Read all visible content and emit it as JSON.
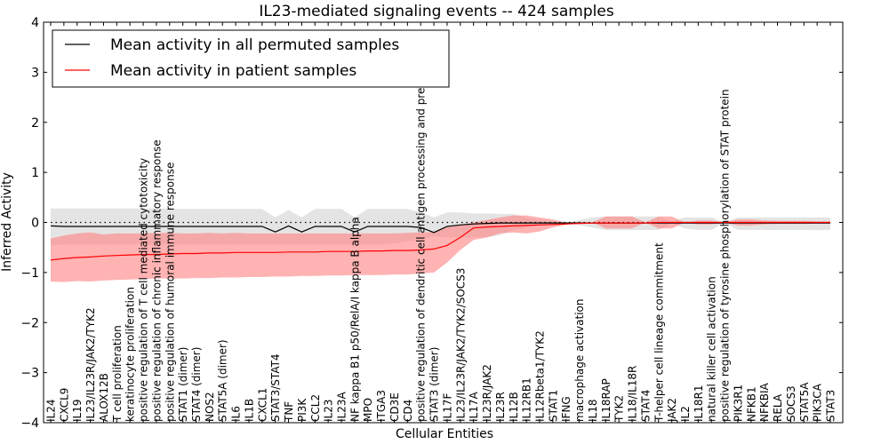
{
  "chart_data": {
    "type": "line",
    "title": "IL23-mediated signaling events -- 424 samples",
    "xlabel": "Cellular Entities",
    "ylabel": "Inferred Activity",
    "ylim": [
      -4,
      4
    ],
    "yticks": [
      -4,
      -3,
      -2,
      -1,
      0,
      1,
      2,
      3,
      4
    ],
    "ytick_labels": [
      "−4",
      "−3",
      "−2",
      "−1",
      "0",
      "1",
      "2",
      "3",
      "4"
    ],
    "grid": false,
    "legend_position": "top-left",
    "reference_line": {
      "y": 0,
      "style": "dotted",
      "color": "#000000"
    },
    "categories": [
      "IL24",
      "CXCL9",
      "IL19",
      "IL23/IL23R/JAK2/TYK2",
      "ALOX12B",
      "T cell proliferation",
      "keratinocyte proliferation",
      "positive regulation of T cell mediated cytotoxicity",
      "positive regulation of chronic inflammatory response",
      "positive regulation of humoral immune response",
      "STAT1 (dimer)",
      "STAT4 (dimer)",
      "NOS2",
      "STAT5A (dimer)",
      "IL6",
      "IL1B",
      "CXCL1",
      "STAT3/STAT4",
      "TNF",
      "PI3K",
      "CCL2",
      "IL23",
      "IL23A",
      "NF kappa B1 p50/RelA/I kappa B alpha",
      "MPO",
      "ITGA3",
      "CD3E",
      "CD4",
      "positive regulation of dendritic cell antigen processing and presentation",
      "STAT3 (dimer)",
      "IL17F",
      "IL23/IL23R/JAK2/TYK2/SOCS3",
      "IL17A",
      "IL23R/JAK2",
      "IL23R",
      "IL12B",
      "IL12RB1",
      "IL12Rbeta1/TYK2",
      "STAT1",
      "IFNG",
      "macrophage activation",
      "IL18",
      "IL18RAP",
      "TYK2",
      "IL18/IL18R",
      "STAT4",
      "T-helper cell lineage commitment",
      "JAK2",
      "IL2",
      "IL18R1",
      "natural killer cell activation",
      "positive regulation of tyrosine phosphorylation of STAT protein",
      "PIK3R1",
      "NFKB1",
      "NFKBIA",
      "RELA",
      "SOCS3",
      "STAT5A",
      "PIK3CA",
      "STAT3"
    ],
    "series": [
      {
        "name": "Mean activity in all permuted samples",
        "color": "#000000",
        "band_color": "#bbbbbb",
        "values": [
          -0.07,
          -0.08,
          -0.08,
          -0.08,
          -0.08,
          -0.08,
          -0.08,
          -0.08,
          -0.08,
          -0.08,
          -0.08,
          -0.08,
          -0.08,
          -0.08,
          -0.08,
          -0.08,
          -0.08,
          -0.19,
          -0.07,
          -0.19,
          -0.08,
          -0.08,
          -0.08,
          -0.19,
          -0.08,
          -0.08,
          -0.08,
          -0.08,
          -0.1,
          -0.2,
          -0.08,
          -0.05,
          -0.03,
          -0.02,
          -0.01,
          -0.01,
          -0.01,
          -0.01,
          -0.01,
          -0.01,
          -0.01,
          -0.01,
          -0.01,
          -0.01,
          -0.01,
          -0.01,
          -0.01,
          -0.01,
          -0.01,
          -0.01,
          -0.01,
          -0.01,
          -0.01,
          -0.01,
          -0.01,
          -0.01,
          -0.01,
          -0.01,
          -0.01,
          -0.01
        ],
        "band_upper": [
          0.28,
          0.28,
          0.28,
          0.28,
          0.28,
          0.28,
          0.28,
          0.28,
          0.28,
          0.28,
          0.27,
          0.27,
          0.27,
          0.27,
          0.27,
          0.27,
          0.27,
          0.1,
          0.25,
          0.1,
          0.27,
          0.27,
          0.27,
          0.1,
          0.27,
          0.27,
          0.27,
          0.27,
          0.2,
          0.1,
          0.2,
          0.2,
          0.18,
          0.18,
          0.17,
          0.17,
          0.1,
          0.05,
          0.02,
          0.0,
          0.05,
          0.1,
          0.12,
          0.12,
          0.12,
          0.12,
          0.12,
          0.02,
          0.1,
          0.1,
          0.1,
          0.0,
          0.1,
          0.1,
          0.1,
          0.1,
          0.1,
          0.1,
          0.1,
          0.1
        ],
        "band_lower": [
          -0.46,
          -0.44,
          -0.44,
          -0.44,
          -0.44,
          -0.44,
          -0.44,
          -0.44,
          -0.44,
          -0.44,
          -0.44,
          -0.44,
          -0.44,
          -0.44,
          -0.44,
          -0.44,
          -0.44,
          -0.44,
          -0.44,
          -0.44,
          -0.44,
          -0.44,
          -0.44,
          -0.44,
          -0.44,
          -0.44,
          -0.42,
          -0.38,
          -0.35,
          -0.27,
          -0.3,
          -0.3,
          -0.3,
          -0.3,
          -0.25,
          -0.15,
          -0.1,
          -0.05,
          -0.02,
          0.0,
          -0.05,
          -0.1,
          -0.15,
          -0.15,
          -0.15,
          -0.15,
          -0.15,
          -0.02,
          -0.12,
          -0.15,
          -0.15,
          0.0,
          -0.15,
          -0.15,
          -0.15,
          -0.15,
          -0.15,
          -0.15,
          -0.15,
          -0.15
        ]
      },
      {
        "name": "Mean activity in patient samples",
        "color": "#ff0000",
        "band_color": "#ff8080",
        "values": [
          -0.75,
          -0.72,
          -0.7,
          -0.69,
          -0.67,
          -0.66,
          -0.65,
          -0.64,
          -0.64,
          -0.63,
          -0.62,
          -0.62,
          -0.61,
          -0.61,
          -0.6,
          -0.6,
          -0.6,
          -0.6,
          -0.59,
          -0.59,
          -0.59,
          -0.58,
          -0.58,
          -0.58,
          -0.57,
          -0.57,
          -0.56,
          -0.56,
          -0.55,
          -0.53,
          -0.46,
          -0.3,
          -0.11,
          -0.09,
          -0.08,
          -0.07,
          -0.06,
          -0.05,
          -0.04,
          -0.03,
          -0.02,
          -0.01,
          -0.01,
          -0.01,
          -0.01,
          -0.01,
          0.0,
          0.0,
          0.0,
          0.0,
          0.0,
          0.0,
          0.0,
          0.0,
          0.0,
          0.0,
          0.0,
          0.0,
          0.0,
          0.0
        ],
        "band_upper": [
          -0.32,
          -0.26,
          -0.22,
          -0.2,
          -0.24,
          -0.22,
          -0.22,
          -0.22,
          -0.21,
          -0.21,
          -0.22,
          -0.22,
          -0.21,
          -0.22,
          -0.21,
          -0.22,
          -0.22,
          -0.22,
          -0.22,
          -0.22,
          -0.22,
          -0.22,
          -0.22,
          -0.22,
          -0.22,
          -0.22,
          -0.22,
          -0.21,
          -0.2,
          -0.19,
          -0.1,
          -0.05,
          0.0,
          0.05,
          0.1,
          0.14,
          0.14,
          0.1,
          0.06,
          0.0,
          0.0,
          0.0,
          0.12,
          0.12,
          0.12,
          0.0,
          0.12,
          0.12,
          0.0,
          0.04,
          0.04,
          0.0,
          0.06,
          0.06,
          0.04,
          0.03,
          0.03,
          0.03,
          0.02,
          0.02
        ],
        "band_lower": [
          -1.18,
          -1.19,
          -1.17,
          -1.18,
          -1.16,
          -1.15,
          -1.14,
          -1.13,
          -1.12,
          -1.12,
          -1.12,
          -1.11,
          -1.11,
          -1.1,
          -1.1,
          -1.09,
          -1.09,
          -1.08,
          -1.08,
          -1.07,
          -1.07,
          -1.06,
          -1.06,
          -1.05,
          -1.05,
          -1.05,
          -1.04,
          -1.04,
          -1.02,
          -1.0,
          -0.8,
          -0.55,
          -0.35,
          -0.3,
          -0.22,
          -0.2,
          -0.22,
          -0.18,
          -0.1,
          -0.05,
          0.0,
          0.0,
          -0.12,
          -0.12,
          -0.12,
          0.0,
          -0.12,
          -0.12,
          0.0,
          -0.04,
          -0.04,
          0.0,
          -0.06,
          -0.06,
          -0.04,
          -0.03,
          -0.03,
          -0.03,
          -0.02,
          -0.02
        ]
      }
    ]
  }
}
